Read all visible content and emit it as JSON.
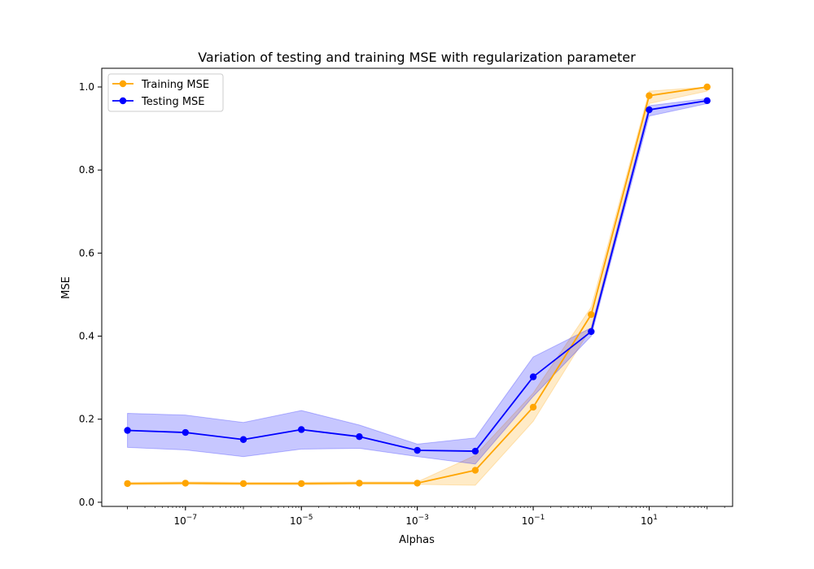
{
  "chart_data": {
    "type": "line",
    "title": "Variation of testing and training MSE with regularization parameter",
    "xlabel": "Alphas",
    "ylabel": "MSE",
    "xscale": "log",
    "xlim": [
      3.6e-09,
      275
    ],
    "ylim": [
      -0.01,
      1.045
    ],
    "x": [
      1e-08,
      1e-07,
      1e-06,
      1e-05,
      0.0001,
      0.001,
      0.01,
      0.1,
      1,
      10,
      100
    ],
    "x_ticks": [
      {
        "value": 1e-07,
        "base": "10",
        "exp": "−7"
      },
      {
        "value": 1e-05,
        "base": "10",
        "exp": "−5"
      },
      {
        "value": 0.001,
        "base": "10",
        "exp": "−3"
      },
      {
        "value": 0.1,
        "base": "10",
        "exp": "−1"
      },
      {
        "value": 10,
        "base": "10",
        "exp": "1"
      }
    ],
    "y_ticks": [
      {
        "value": 0.0,
        "label": "0.0"
      },
      {
        "value": 0.2,
        "label": "0.2"
      },
      {
        "value": 0.4,
        "label": "0.4"
      },
      {
        "value": 0.6,
        "label": "0.6"
      },
      {
        "value": 0.8,
        "label": "0.8"
      },
      {
        "value": 1.0,
        "label": "1.0"
      }
    ],
    "grid": false,
    "legend_position": "top-left",
    "series": [
      {
        "name": "Training MSE",
        "color": "#FFA500",
        "values": [
          0.045,
          0.046,
          0.045,
          0.045,
          0.046,
          0.046,
          0.077,
          0.229,
          0.452,
          0.979,
          1.0
        ],
        "band_low": [
          0.042,
          0.043,
          0.042,
          0.042,
          0.043,
          0.043,
          0.041,
          0.195,
          0.42,
          0.96,
          0.99
        ],
        "band_high": [
          0.048,
          0.049,
          0.048,
          0.048,
          0.049,
          0.049,
          0.113,
          0.263,
          0.47,
          0.99,
          1.0
        ]
      },
      {
        "name": "Testing MSE",
        "color": "#0000FF",
        "values": [
          0.173,
          0.168,
          0.151,
          0.175,
          0.158,
          0.125,
          0.123,
          0.302,
          0.411,
          0.945,
          0.967
        ],
        "band_low": [
          0.132,
          0.126,
          0.11,
          0.128,
          0.13,
          0.11,
          0.092,
          0.255,
          0.4,
          0.93,
          0.96
        ],
        "band_high": [
          0.214,
          0.21,
          0.192,
          0.221,
          0.186,
          0.14,
          0.155,
          0.35,
          0.42,
          0.955,
          0.972
        ]
      }
    ]
  }
}
